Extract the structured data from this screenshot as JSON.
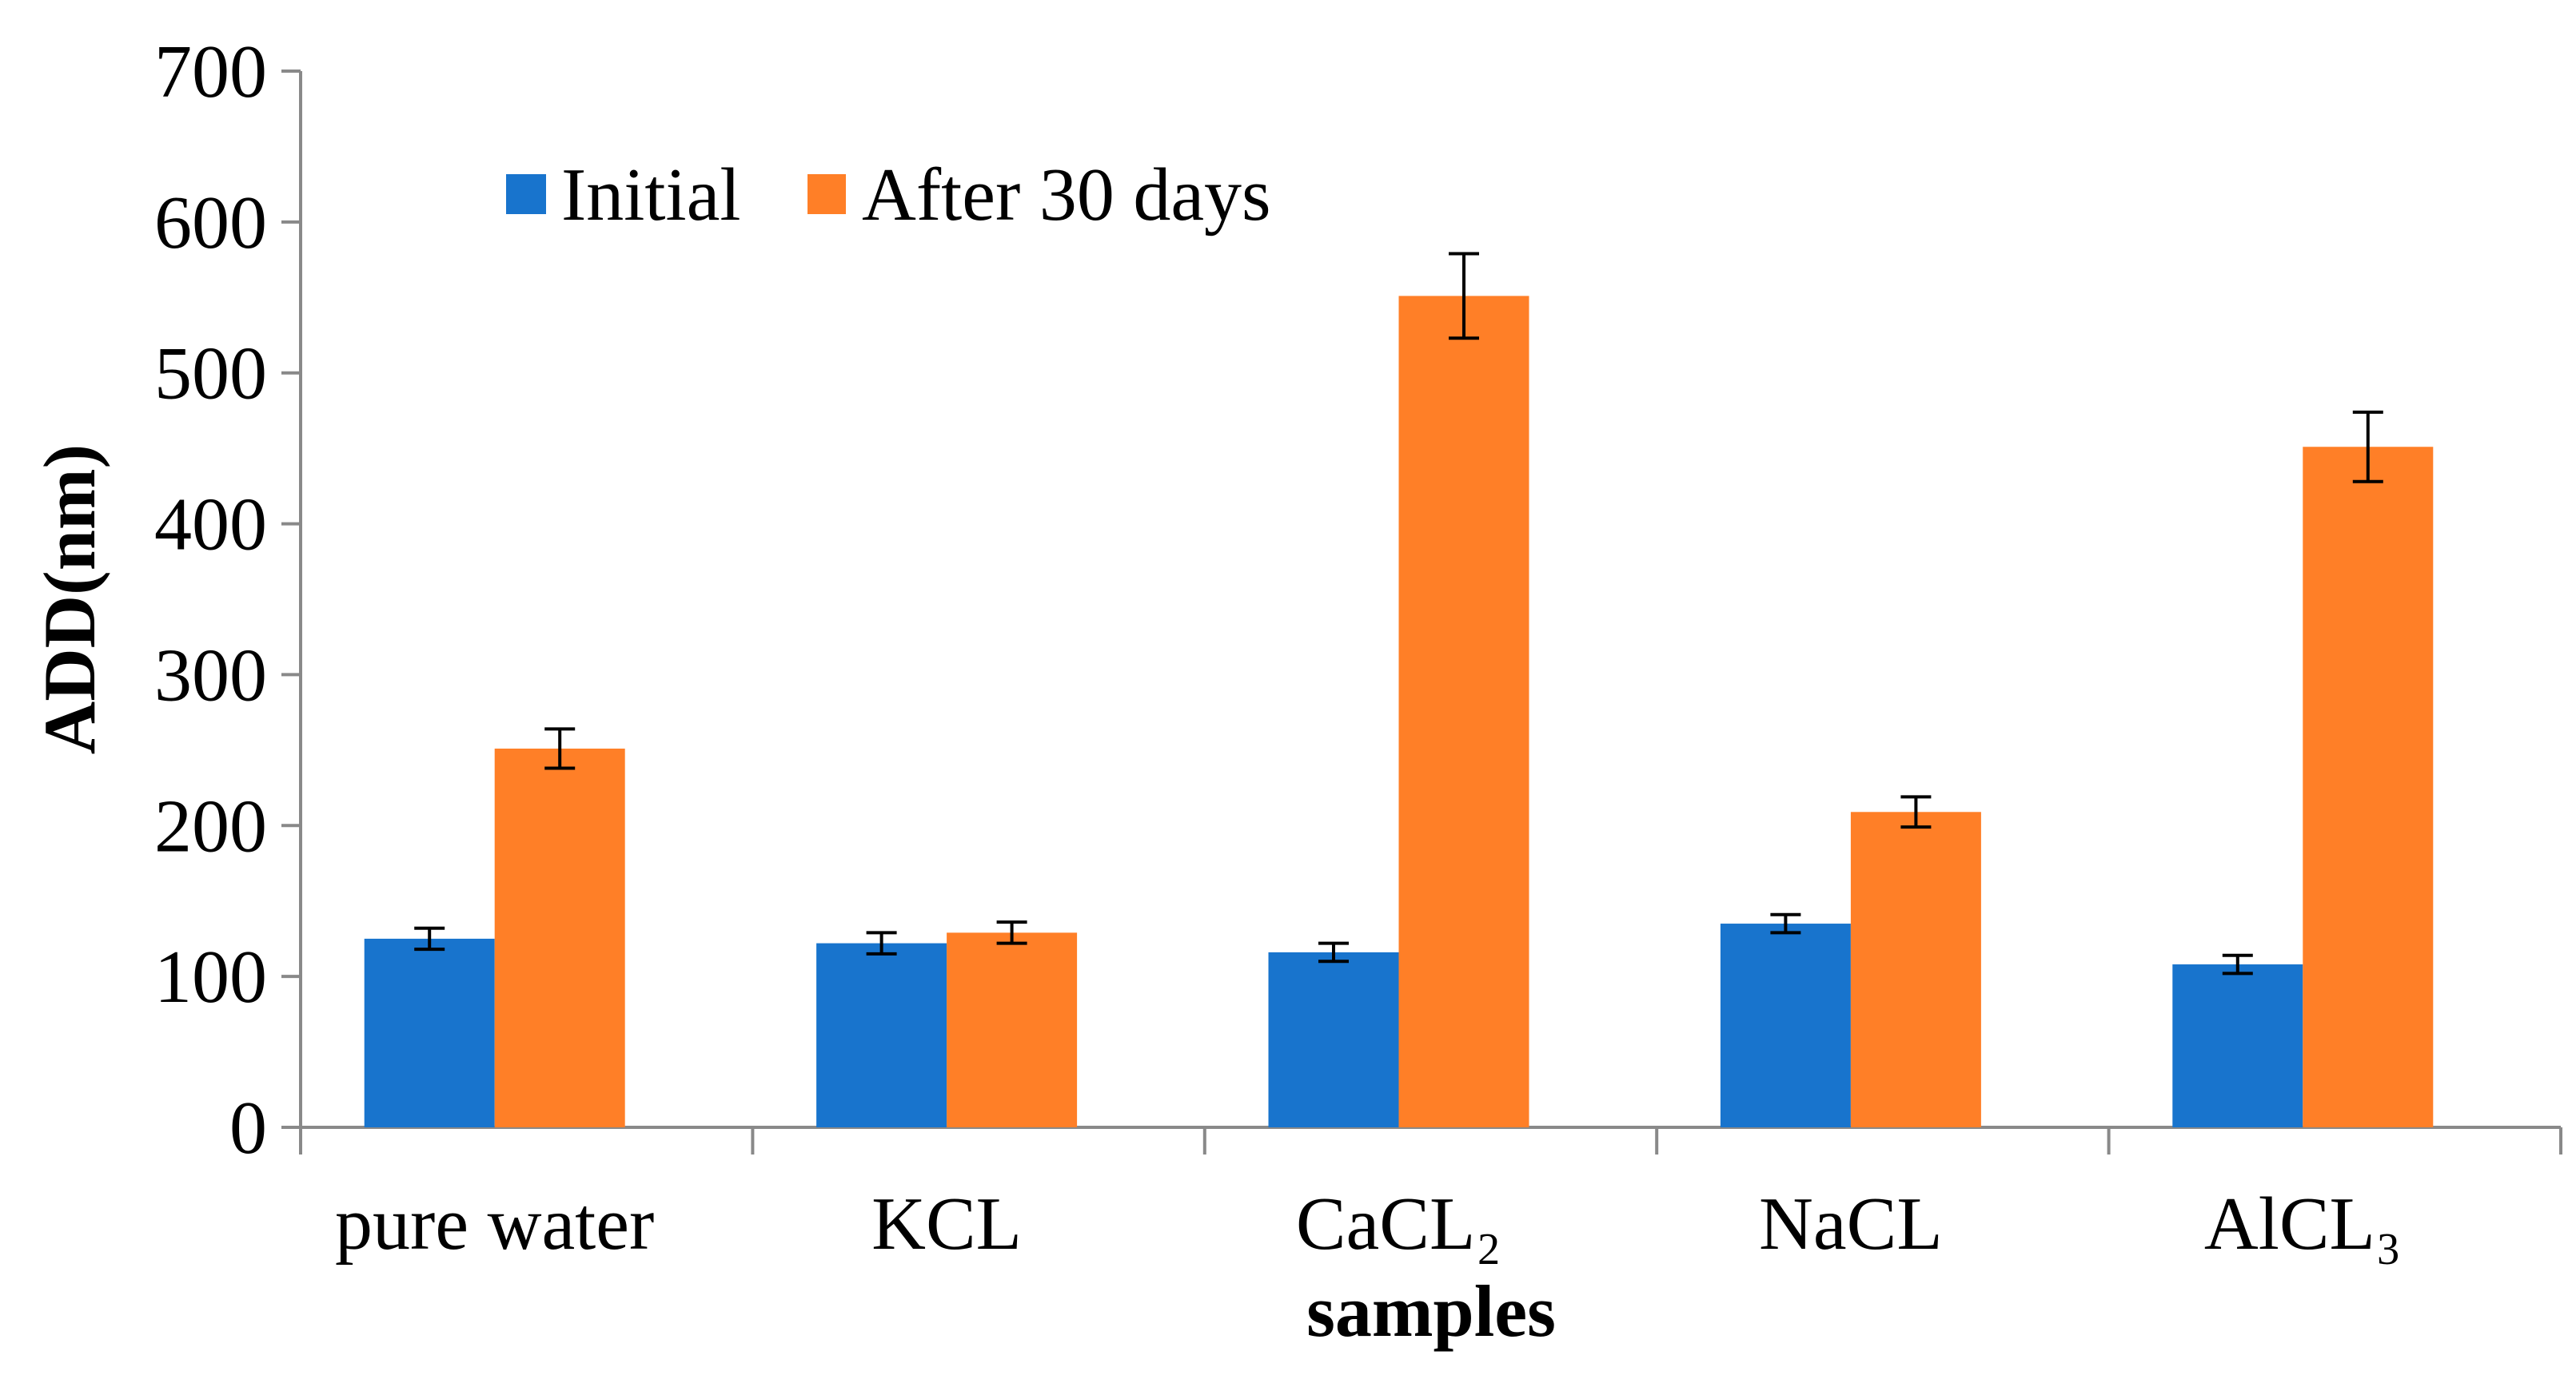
{
  "chart_data": {
    "type": "bar",
    "title": "",
    "xlabel": "samples",
    "ylabel": "ADD(nm)",
    "ylim": [
      0,
      700
    ],
    "yticks": [
      0,
      100,
      200,
      300,
      400,
      500,
      600,
      700
    ],
    "grid": false,
    "legend_position": "top-left",
    "categories": [
      "pure water",
      "KCL",
      "CaCL₂",
      "NaCL",
      "AlCL₃"
    ],
    "series": [
      {
        "name": "Initial",
        "color": "#1874CD",
        "values": [
          125,
          122,
          116,
          135,
          108
        ],
        "errors": [
          7,
          7,
          6,
          6,
          6
        ]
      },
      {
        "name": "After 30 days",
        "color": "#FF7F27",
        "values": [
          251,
          129,
          551,
          209,
          451
        ],
        "errors": [
          13,
          7,
          28,
          10,
          23
        ]
      }
    ]
  }
}
